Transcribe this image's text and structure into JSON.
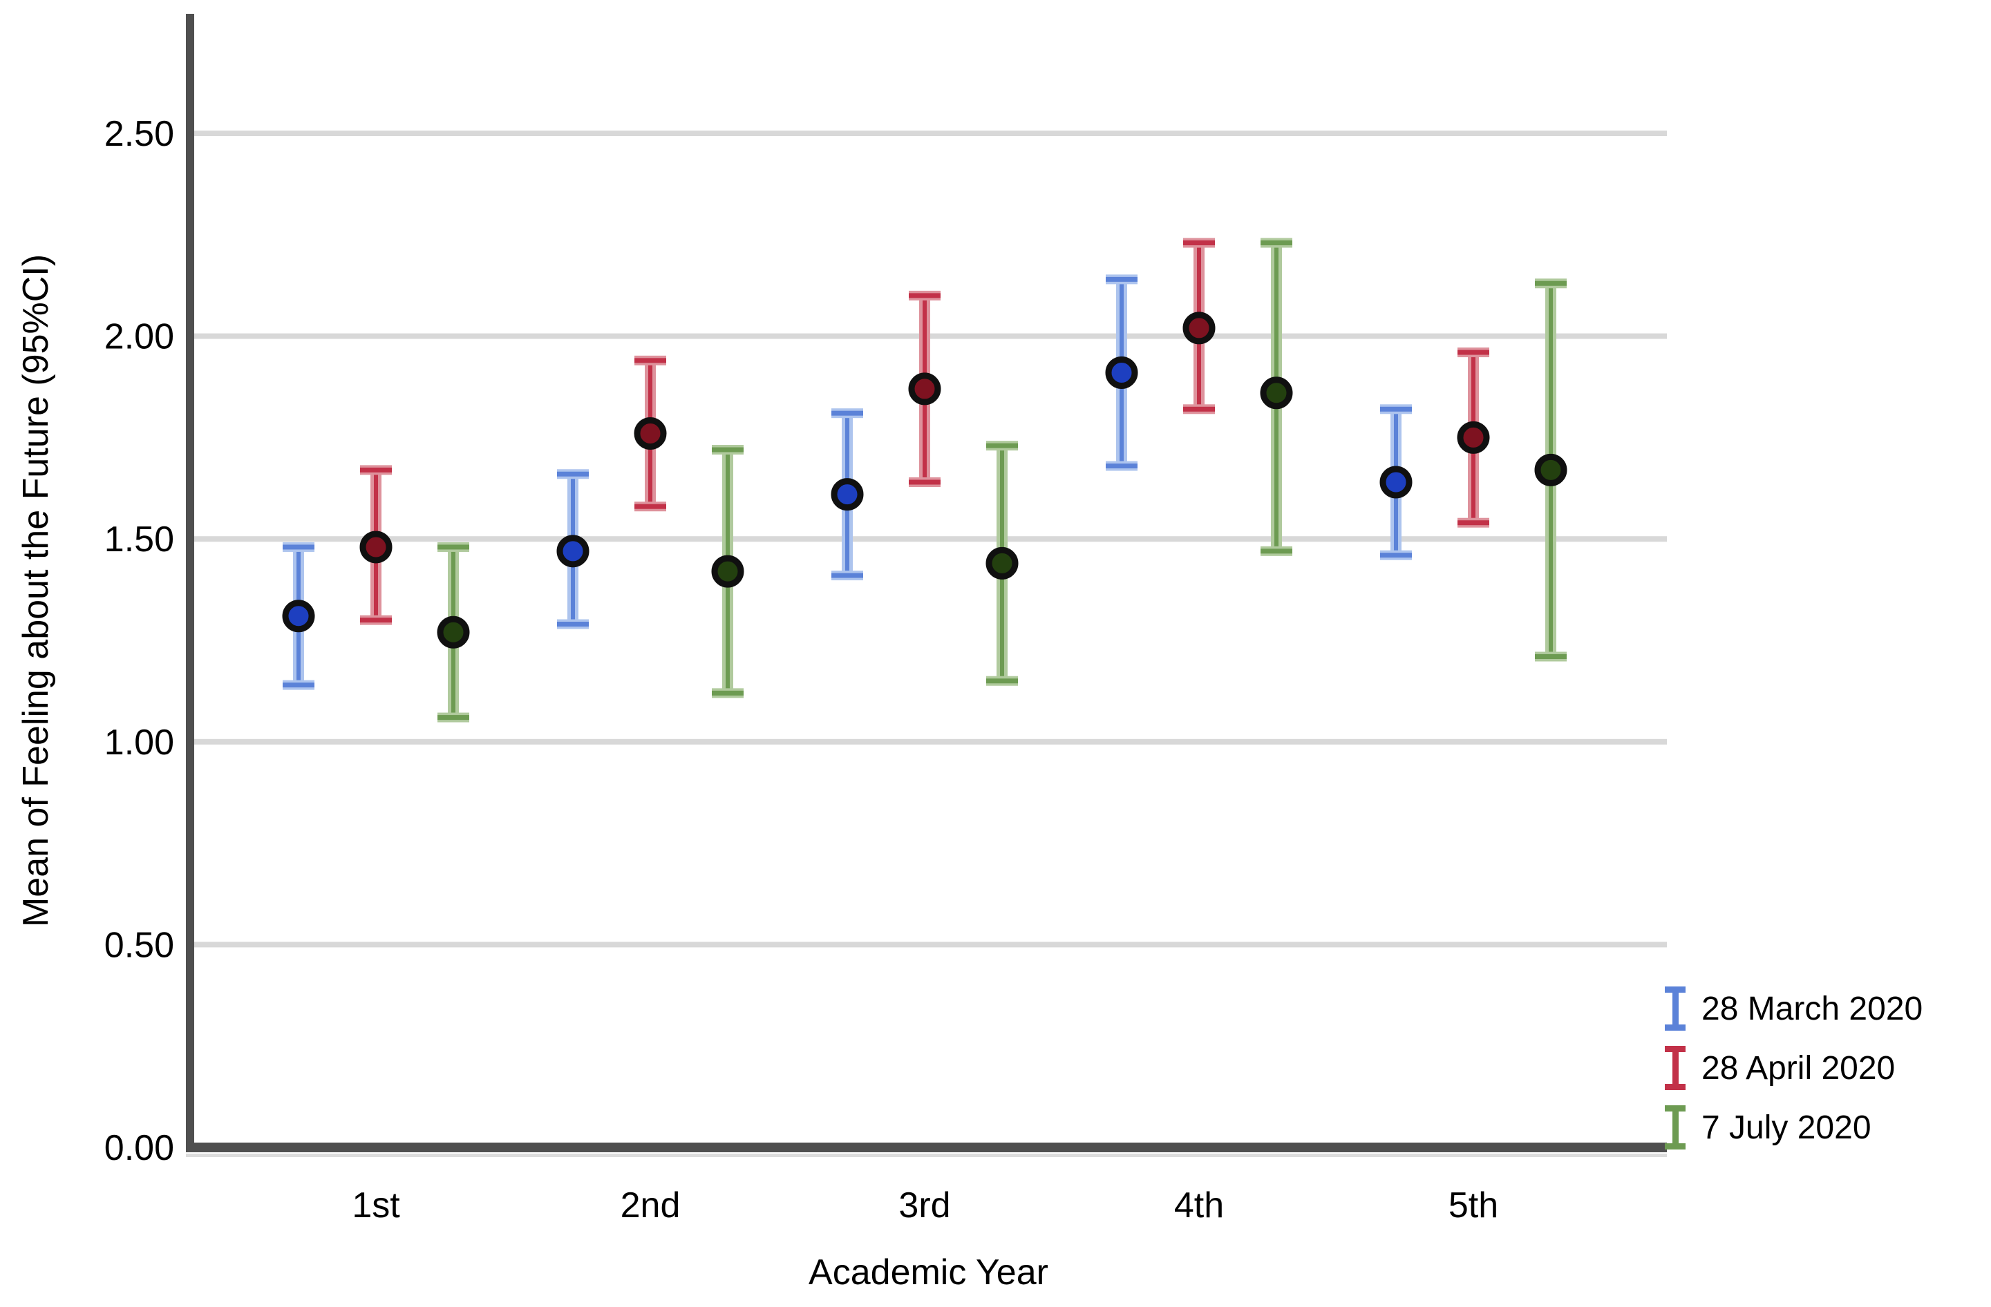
{
  "chart_data": {
    "type": "errorbar-point",
    "title": "",
    "xlabel": "Academic Year",
    "ylabel": "Mean of Feeling about the Future (95%CI)",
    "categories": [
      "1st",
      "2nd",
      "3rd",
      "4th",
      "5th"
    ],
    "ylim": [
      0.0,
      2.75
    ],
    "grid": true,
    "legend_position": "bottom-right",
    "background_color": "#ffffff",
    "grid_color": "#d8d8d8",
    "axis_color": "#4f4f4f",
    "text_color": "#000000",
    "y_ticks": [
      {
        "value": 0.0,
        "label": "0.00"
      },
      {
        "value": 0.5,
        "label": "0.50"
      },
      {
        "value": 1.0,
        "label": "1.00"
      },
      {
        "value": 1.5,
        "label": "1.50"
      },
      {
        "value": 2.0,
        "label": "2.00"
      },
      {
        "value": 2.5,
        "label": "2.50"
      }
    ],
    "series": [
      {
        "name": "28 March 2020",
        "bar_color": "#5b82d8",
        "halo_color": "#adc4ee",
        "marker_color": "#1d3fc0",
        "points": [
          {
            "category": "1st",
            "mean": 1.31,
            "lo": 1.14,
            "hi": 1.48
          },
          {
            "category": "2nd",
            "mean": 1.47,
            "lo": 1.29,
            "hi": 1.66
          },
          {
            "category": "3rd",
            "mean": 1.61,
            "lo": 1.41,
            "hi": 1.81
          },
          {
            "category": "4th",
            "mean": 1.91,
            "lo": 1.68,
            "hi": 2.14
          },
          {
            "category": "5th",
            "mean": 1.64,
            "lo": 1.46,
            "hi": 1.82
          }
        ]
      },
      {
        "name": "28 April 2020",
        "bar_color": "#c23148",
        "halo_color": "#de929c",
        "marker_color": "#7e1220",
        "points": [
          {
            "category": "1st",
            "mean": 1.48,
            "lo": 1.3,
            "hi": 1.67
          },
          {
            "category": "2nd",
            "mean": 1.76,
            "lo": 1.58,
            "hi": 1.94
          },
          {
            "category": "3rd",
            "mean": 1.87,
            "lo": 1.64,
            "hi": 2.1
          },
          {
            "category": "4th",
            "mean": 2.02,
            "lo": 1.82,
            "hi": 2.23
          },
          {
            "category": "5th",
            "mean": 1.75,
            "lo": 1.54,
            "hi": 1.96
          }
        ]
      },
      {
        "name": "7 July 2020",
        "bar_color": "#6d9b52",
        "halo_color": "#b0ca9d",
        "marker_color": "#23400f",
        "points": [
          {
            "category": "1st",
            "mean": 1.27,
            "lo": 1.06,
            "hi": 1.48
          },
          {
            "category": "2nd",
            "mean": 1.42,
            "lo": 1.12,
            "hi": 1.72
          },
          {
            "category": "3rd",
            "mean": 1.44,
            "lo": 1.15,
            "hi": 1.73
          },
          {
            "category": "4th",
            "mean": 1.86,
            "lo": 1.47,
            "hi": 2.23
          },
          {
            "category": "5th",
            "mean": 1.67,
            "lo": 1.21,
            "hi": 2.13
          }
        ]
      }
    ]
  }
}
